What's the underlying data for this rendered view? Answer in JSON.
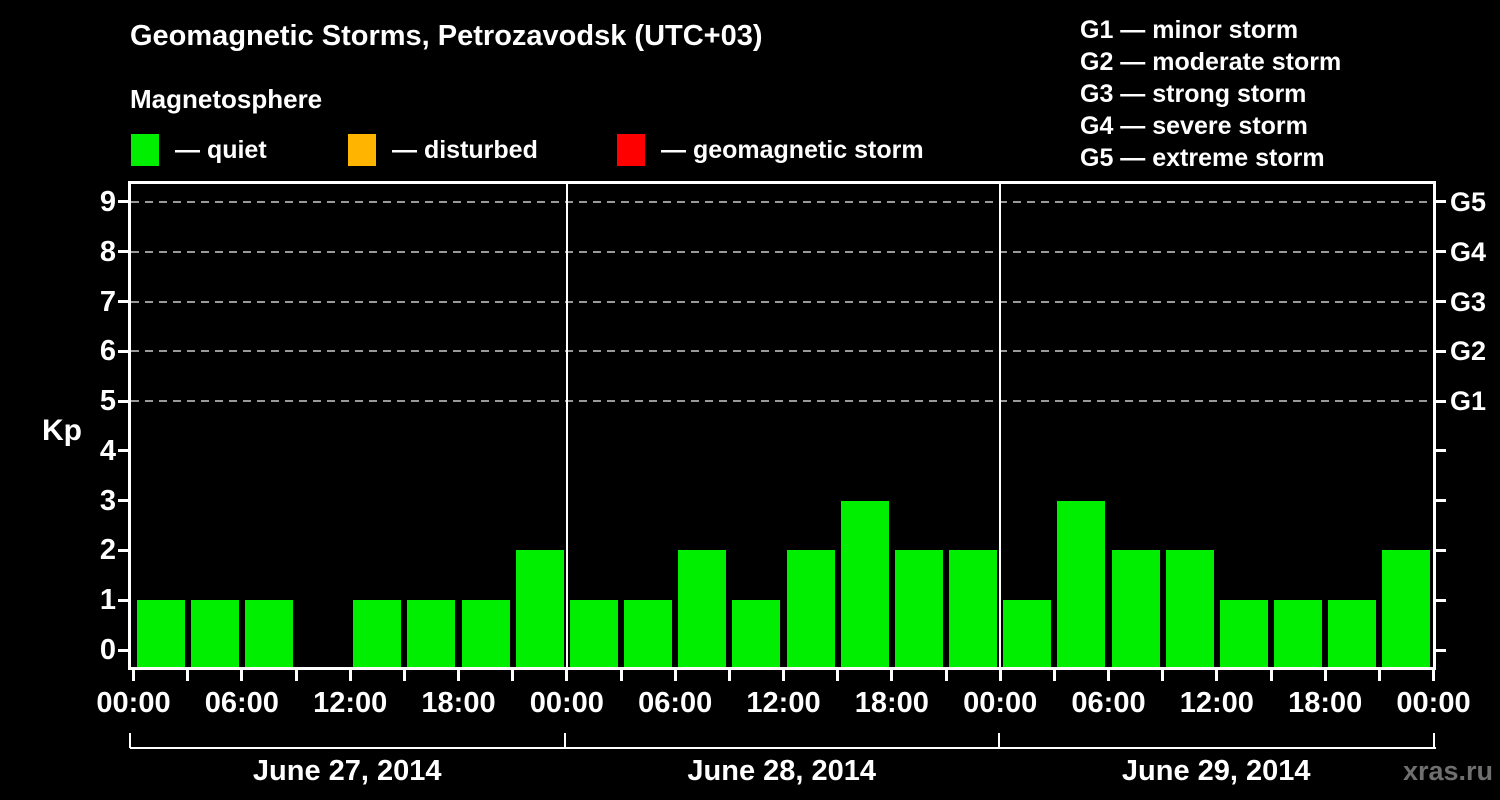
{
  "header": {
    "title": "Geomagnetic Storms, Petrozavodsk (UTC+03)",
    "subtitle": "Magnetosphere"
  },
  "kp_legend": [
    {
      "name": "quiet",
      "label": "— quiet",
      "color": "#00ee00"
    },
    {
      "name": "disturbed",
      "label": "— disturbed",
      "color": "#ffb400"
    },
    {
      "name": "geomagnetic-storm",
      "label": "— geomagnetic storm",
      "color": "#ff0000"
    }
  ],
  "g_legend": [
    "G1 — minor storm",
    "G2 — moderate storm",
    "G3 — strong storm",
    "G4 — severe storm",
    "G5 — extreme storm"
  ],
  "watermark": "xras.ru",
  "chart_data": {
    "type": "bar",
    "title": "Geomagnetic Storms, Petrozavodsk (UTC+03)",
    "ylabel": "Kp",
    "xlabel": "",
    "ylim": [
      -0.35,
      9.4
    ],
    "y_ticks": [
      0,
      1,
      2,
      3,
      4,
      5,
      6,
      7,
      8,
      9
    ],
    "gridlines_at": [
      5,
      6,
      7,
      8,
      9
    ],
    "grid": "dashed horizontal at storm levels only",
    "right_axis_labels": [
      {
        "kp": 5,
        "label": "G1"
      },
      {
        "kp": 6,
        "label": "G2"
      },
      {
        "kp": 7,
        "label": "G3"
      },
      {
        "kp": 8,
        "label": "G4"
      },
      {
        "kp": 9,
        "label": "G5"
      }
    ],
    "bin_hours": 3,
    "x_minor_tick_hours": 3,
    "x_label_hours": 6,
    "x_tick_labels": [
      "00:00",
      "06:00",
      "12:00",
      "18:00",
      "00:00",
      "06:00",
      "12:00",
      "18:00",
      "00:00",
      "06:00",
      "12:00",
      "18:00",
      "00:00"
    ],
    "days": [
      {
        "date": "June 27, 2014",
        "values": [
          1,
          1,
          1,
          0,
          1,
          1,
          1,
          2
        ]
      },
      {
        "date": "June 28, 2014",
        "values": [
          1,
          1,
          2,
          1,
          2,
          3,
          2,
          2
        ]
      },
      {
        "date": "June 29, 2014",
        "values": [
          1,
          3,
          2,
          2,
          1,
          1,
          1,
          2
        ]
      }
    ],
    "bar_color": "#00ee00",
    "legend_position": "top-left and top-right",
    "colors": {
      "background": "#000000",
      "axis": "#ffffff",
      "gridline": "#999999",
      "watermark_text": "#6f6f6f"
    }
  }
}
